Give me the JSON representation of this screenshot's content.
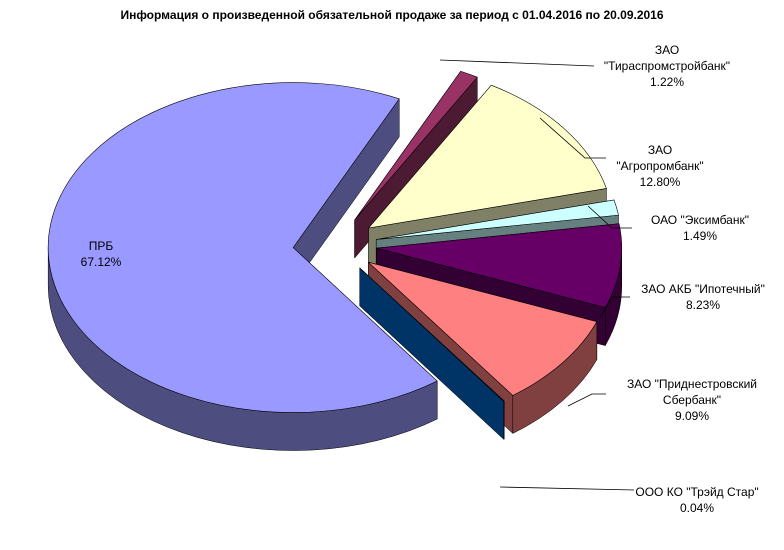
{
  "chart_data": {
    "type": "pie",
    "title": "Информация о произведенной обязательной продаже за период с 01.04.2016 по 20.09.2016",
    "categories": [
      "ПРБ",
      "ЗАО \"Тираспромстройбанк\"",
      "ЗАО \"Агропромбанк\"",
      "ОАО \"Эксимбанк\"",
      "ЗАО АКБ \"Ипотечный\"",
      "ЗАО \"Приднестровский Сбербанк\"",
      "ООО КО \"Трэйд Стар\""
    ],
    "values": [
      67.12,
      1.22,
      12.8,
      1.49,
      8.23,
      9.09,
      0.04
    ],
    "value_labels": [
      "67.12%",
      "1.22%",
      "12.80%",
      "1.49%",
      "8.23%",
      "9.09%",
      "0.04%"
    ],
    "colors": [
      "#9999ff",
      "#993366",
      "#ffffcc",
      "#ccffff",
      "#660066",
      "#ff8080",
      "#0066cc"
    ]
  }
}
